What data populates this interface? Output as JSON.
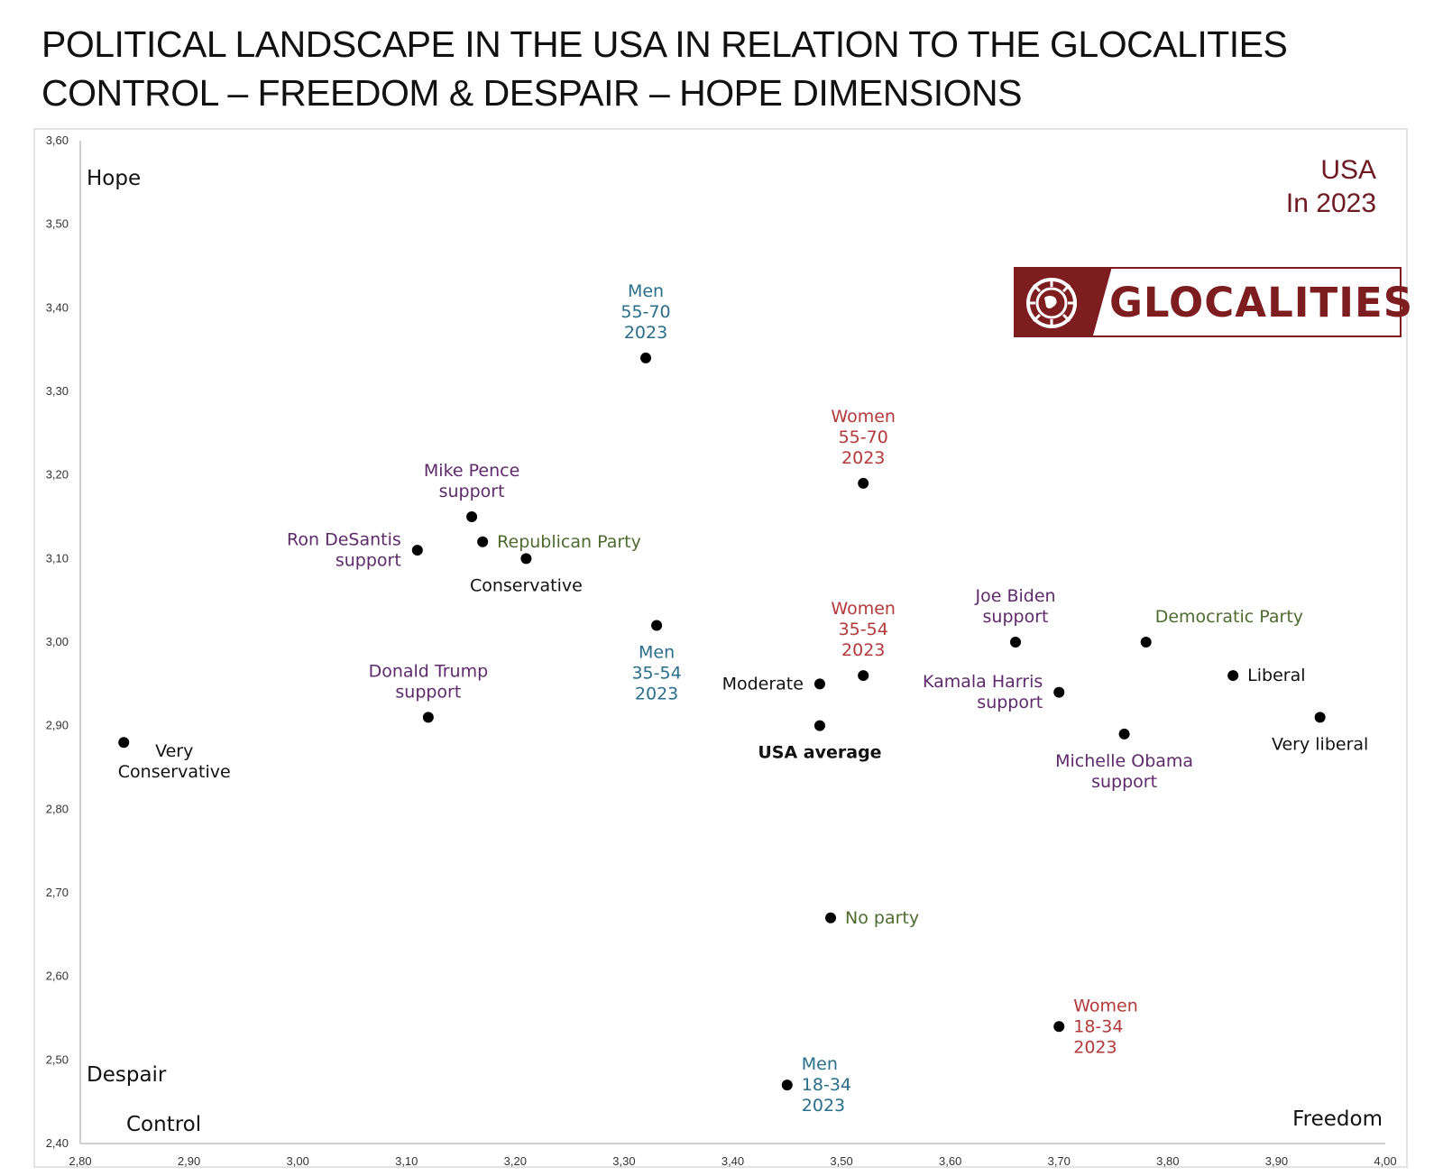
{
  "title_lines": [
    "POLITICAL LANDSCAPE IN THE USA IN RELATION TO THE GLOCALITIES",
    "CONTROL – FREEDOM & DESPAIR – HOPE  DIMENSIONS"
  ],
  "badge": {
    "line1": "USA",
    "line2": "In 2023",
    "color": "#6e1a22"
  },
  "logo": {
    "text": "GLOCALITIES",
    "icon": "globe-compass-icon",
    "color": "#7d1d20"
  },
  "colors": {
    "purple": "#5e2a6b",
    "green": "#4e6b2f",
    "red": "#b23a3a",
    "teal": "#2a6e8a",
    "black": "#111111"
  },
  "chart_data": {
    "type": "scatter",
    "xlim": [
      2.8,
      4.0
    ],
    "ylim": [
      2.4,
      3.6
    ],
    "x_ticks": [
      "2,80",
      "2,90",
      "3,00",
      "3,10",
      "3,20",
      "3,30",
      "3,40",
      "3,50",
      "3,60",
      "3,70",
      "3,80",
      "3,90",
      "4,00"
    ],
    "y_ticks": [
      "3,60",
      "3,50",
      "3,40",
      "3,30",
      "3,20",
      "3,10",
      "3,00",
      "2,90",
      "2,80",
      "2,70",
      "2,60",
      "2,50",
      "2,40"
    ],
    "corner_labels": {
      "top_left": "Hope",
      "bottom_left_y": "Despair",
      "bottom_left_x": "Control",
      "bottom_right": "Freedom"
    },
    "grid": false,
    "points": [
      {
        "lines": [
          "Men",
          "55-70",
          "2023"
        ],
        "x": 3.32,
        "y": 3.34,
        "color": "teal",
        "anchor": "above"
      },
      {
        "lines": [
          "Women",
          "55-70",
          "2023"
        ],
        "x": 3.52,
        "y": 3.19,
        "color": "red",
        "anchor": "above"
      },
      {
        "lines": [
          "Mike Pence",
          "support"
        ],
        "x": 3.16,
        "y": 3.15,
        "color": "purple",
        "anchor": "above"
      },
      {
        "lines": [
          "Republican Party"
        ],
        "x": 3.17,
        "y": 3.12,
        "color": "green",
        "anchor": "right"
      },
      {
        "lines": [
          "Ron DeSantis",
          "support"
        ],
        "x": 3.11,
        "y": 3.11,
        "color": "purple",
        "anchor": "left"
      },
      {
        "lines": [
          "Conservative"
        ],
        "x": 3.21,
        "y": 3.1,
        "color": "black",
        "anchor": "below"
      },
      {
        "lines": [
          "Men",
          "35-54",
          "2023"
        ],
        "x": 3.33,
        "y": 3.02,
        "color": "teal",
        "anchor": "below"
      },
      {
        "lines": [
          "Women",
          "35-54",
          "2023"
        ],
        "x": 3.52,
        "y": 2.96,
        "color": "red",
        "anchor": "above"
      },
      {
        "lines": [
          "Joe Biden",
          "support"
        ],
        "x": 3.66,
        "y": 3.0,
        "color": "purple",
        "anchor": "above"
      },
      {
        "lines": [
          "Democratic Party"
        ],
        "x": 3.78,
        "y": 3.0,
        "color": "green",
        "anchor": "above-right"
      },
      {
        "lines": [
          "Liberal"
        ],
        "x": 3.86,
        "y": 2.96,
        "color": "black",
        "anchor": "right"
      },
      {
        "lines": [
          "Moderate"
        ],
        "x": 3.48,
        "y": 2.95,
        "color": "black",
        "anchor": "left"
      },
      {
        "lines": [
          "Kamala Harris",
          "support"
        ],
        "x": 3.7,
        "y": 2.94,
        "color": "purple",
        "anchor": "left"
      },
      {
        "lines": [
          "Donald Trump",
          "support"
        ],
        "x": 3.12,
        "y": 2.91,
        "color": "purple",
        "anchor": "above"
      },
      {
        "lines": [
          "Very liberal"
        ],
        "x": 3.94,
        "y": 2.91,
        "color": "black",
        "anchor": "below"
      },
      {
        "lines": [
          "USA average"
        ],
        "x": 3.48,
        "y": 2.9,
        "color": "black",
        "anchor": "below",
        "bold": true
      },
      {
        "lines": [
          "Michelle Obama",
          "support"
        ],
        "x": 3.76,
        "y": 2.89,
        "color": "purple",
        "anchor": "below"
      },
      {
        "lines": [
          "Very",
          "Conservative"
        ],
        "x": 2.84,
        "y": 2.88,
        "color": "black",
        "anchor": "below-right"
      },
      {
        "lines": [
          "No party"
        ],
        "x": 3.49,
        "y": 2.67,
        "color": "green",
        "anchor": "right"
      },
      {
        "lines": [
          "Women",
          "18-34",
          "2023"
        ],
        "x": 3.7,
        "y": 2.54,
        "color": "red",
        "anchor": "right"
      },
      {
        "lines": [
          "Men",
          "18-34",
          "2023"
        ],
        "x": 3.45,
        "y": 2.47,
        "color": "teal",
        "anchor": "right"
      }
    ]
  }
}
